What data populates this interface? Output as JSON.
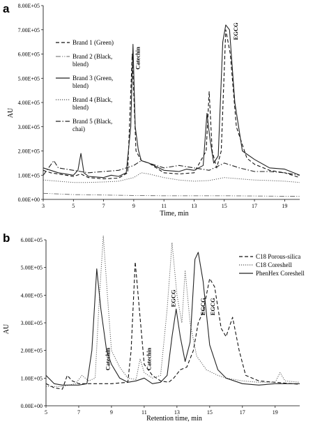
{
  "chart_data": [
    {
      "type": "line",
      "panel_label": "a",
      "xlabel": "Time, min",
      "ylabel": "AU",
      "xlim": [
        3,
        20
      ],
      "ylim": [
        0,
        800000
      ],
      "x_ticks": [
        "3",
        "5",
        "7",
        "9",
        "11",
        "13",
        "15",
        "17",
        "19"
      ],
      "y_ticks": [
        "0.00E+00",
        "1.00E+05",
        "2.00E+05",
        "3.00E+05",
        "4.00E+05",
        "5.00E+05",
        "6.00E+05",
        "7.00E+05",
        "8.00E+05"
      ],
      "legend_position": "left",
      "annotations": [
        {
          "text": "Catechin",
          "x": 9.4,
          "y": 630000
        },
        {
          "text": "EGCG",
          "x": 15.9,
          "y": 730000
        }
      ],
      "series": [
        {
          "name": "Brand 1 (Green)",
          "style": "dashed",
          "points": [
            [
              3,
              120000
            ],
            [
              3.5,
              110000
            ],
            [
              4,
              105000
            ],
            [
              5,
              95000
            ],
            [
              5.5,
              105000
            ],
            [
              6,
              90000
            ],
            [
              7,
              85000
            ],
            [
              8,
              88000
            ],
            [
              8.6,
              110000
            ],
            [
              8.9,
              600000
            ],
            [
              9.15,
              200000
            ],
            [
              9.5,
              160000
            ],
            [
              10,
              150000
            ],
            [
              11,
              110000
            ],
            [
              12,
              105000
            ],
            [
              13,
              110000
            ],
            [
              13.8,
              200000
            ],
            [
              14,
              445000
            ],
            [
              14.2,
              200000
            ],
            [
              14.5,
              130000
            ],
            [
              14.8,
              200000
            ],
            [
              15.1,
              700000
            ],
            [
              15.4,
              600000
            ],
            [
              15.8,
              300000
            ],
            [
              16.5,
              170000
            ],
            [
              17,
              145000
            ],
            [
              18,
              120000
            ],
            [
              19,
              110000
            ],
            [
              20,
              90000
            ]
          ]
        },
        {
          "name": "Brand 2 (Black, blend)",
          "style": "dashdotdot",
          "points": [
            [
              3,
              25000
            ],
            [
              5,
              20000
            ],
            [
              7,
              18000
            ],
            [
              9,
              16000
            ],
            [
              11,
              15000
            ],
            [
              13,
              15000
            ],
            [
              15,
              15000
            ],
            [
              17,
              14000
            ],
            [
              19,
              13000
            ],
            [
              20,
              13000
            ]
          ]
        },
        {
          "name": "Brand 3 (Green, blend)",
          "style": "solid",
          "points": [
            [
              3,
              130000
            ],
            [
              3.5,
              120000
            ],
            [
              4,
              110000
            ],
            [
              5,
              100000
            ],
            [
              5.3,
              120000
            ],
            [
              5.5,
              190000
            ],
            [
              5.7,
              110000
            ],
            [
              6,
              95000
            ],
            [
              7,
              90000
            ],
            [
              7.5,
              100000
            ],
            [
              8,
              95000
            ],
            [
              8.5,
              110000
            ],
            [
              8.8,
              300000
            ],
            [
              8.95,
              640000
            ],
            [
              9.1,
              300000
            ],
            [
              9.3,
              205000
            ],
            [
              9.5,
              160000
            ],
            [
              10,
              150000
            ],
            [
              11,
              120000
            ],
            [
              12,
              115000
            ],
            [
              12.5,
              125000
            ],
            [
              13,
              120000
            ],
            [
              13.6,
              140000
            ],
            [
              13.85,
              355000
            ],
            [
              14.05,
              250000
            ],
            [
              14.3,
              150000
            ],
            [
              14.6,
              180000
            ],
            [
              14.9,
              650000
            ],
            [
              15.1,
              720000
            ],
            [
              15.35,
              700000
            ],
            [
              15.7,
              400000
            ],
            [
              16.2,
              200000
            ],
            [
              17,
              165000
            ],
            [
              18,
              130000
            ],
            [
              19,
              125000
            ],
            [
              20,
              100000
            ]
          ]
        },
        {
          "name": "Brand 4 (Black, blend)",
          "style": "dotted",
          "points": [
            [
              3,
              80000
            ],
            [
              4,
              75000
            ],
            [
              5,
              70000
            ],
            [
              6,
              70000
            ],
            [
              7,
              72000
            ],
            [
              8,
              75000
            ],
            [
              9,
              90000
            ],
            [
              9.5,
              110000
            ],
            [
              10,
              105000
            ],
            [
              11,
              90000
            ],
            [
              12,
              80000
            ],
            [
              13,
              75000
            ],
            [
              14,
              78000
            ],
            [
              15,
              90000
            ],
            [
              16,
              85000
            ],
            [
              17,
              80000
            ],
            [
              18,
              78000
            ],
            [
              19,
              75000
            ],
            [
              20,
              70000
            ]
          ]
        },
        {
          "name": "Brand 5 (Black, chai)",
          "style": "dashdot",
          "points": [
            [
              3,
              100000
            ],
            [
              3.7,
              160000
            ],
            [
              4,
              130000
            ],
            [
              5,
              120000
            ],
            [
              6,
              110000
            ],
            [
              7,
              115000
            ],
            [
              8,
              120000
            ],
            [
              9,
              140000
            ],
            [
              9.5,
              160000
            ],
            [
              10,
              150000
            ],
            [
              11,
              130000
            ],
            [
              12,
              140000
            ],
            [
              13,
              130000
            ],
            [
              14,
              120000
            ],
            [
              15,
              150000
            ],
            [
              16,
              130000
            ],
            [
              17,
              115000
            ],
            [
              18,
              115000
            ],
            [
              19,
              110000
            ],
            [
              20,
              100000
            ]
          ]
        }
      ]
    },
    {
      "type": "line",
      "panel_label": "b",
      "xlabel": "Retention time, min",
      "ylabel": "AU",
      "xlim": [
        5,
        20.5
      ],
      "ylim": [
        0,
        600000
      ],
      "x_ticks": [
        "5",
        "7",
        "9",
        "11",
        "13",
        "15",
        "17",
        "19"
      ],
      "y_ticks": [
        "0.00E+00",
        "1.00E+05",
        "2.00E+05",
        "3.00E+05",
        "4.00E+05",
        "5.00E+05",
        "6.00E+05"
      ],
      "legend_position": "top-right",
      "annotations": [
        {
          "text": "Catechin",
          "x": 8.9,
          "y": 210000
        },
        {
          "text": "Catechin",
          "x": 11.4,
          "y": 210000
        },
        {
          "text": "EGCG",
          "x": 12.9,
          "y": 420000
        },
        {
          "text": "EGCG",
          "x": 14.7,
          "y": 390000
        },
        {
          "text": "EGCG",
          "x": 15.3,
          "y": 390000
        }
      ],
      "series": [
        {
          "name": "C18 Porous-silica",
          "style": "dashed",
          "points": [
            [
              5,
              80000
            ],
            [
              5.5,
              65000
            ],
            [
              6,
              60000
            ],
            [
              6.3,
              110000
            ],
            [
              6.6,
              90000
            ],
            [
              7,
              80000
            ],
            [
              8,
              80000
            ],
            [
              9,
              80000
            ],
            [
              10,
              85000
            ],
            [
              10.2,
              200000
            ],
            [
              10.45,
              520000
            ],
            [
              10.7,
              350000
            ],
            [
              11,
              150000
            ],
            [
              11.5,
              110000
            ],
            [
              12,
              90000
            ],
            [
              12.5,
              85000
            ],
            [
              12.8,
              100000
            ],
            [
              13.2,
              130000
            ],
            [
              13.6,
              140000
            ],
            [
              14,
              200000
            ],
            [
              14.3,
              300000
            ],
            [
              14.6,
              340000
            ],
            [
              15,
              460000
            ],
            [
              15.3,
              430000
            ],
            [
              15.7,
              280000
            ],
            [
              16,
              250000
            ],
            [
              16.4,
              320000
            ],
            [
              16.8,
              200000
            ],
            [
              17.2,
              110000
            ],
            [
              18,
              90000
            ],
            [
              19,
              85000
            ],
            [
              20,
              80000
            ],
            [
              20.5,
              78000
            ]
          ]
        },
        {
          "name": "C18 Coreshell",
          "style": "dotted",
          "points": [
            [
              5,
              70000
            ],
            [
              6,
              70000
            ],
            [
              6.8,
              80000
            ],
            [
              7.2,
              110000
            ],
            [
              7.6,
              90000
            ],
            [
              8,
              100000
            ],
            [
              8.25,
              380000
            ],
            [
              8.5,
              615000
            ],
            [
              8.75,
              400000
            ],
            [
              9,
              200000
            ],
            [
              9.5,
              140000
            ],
            [
              10,
              100000
            ],
            [
              10.5,
              95000
            ],
            [
              10.75,
              170000
            ],
            [
              11,
              120000
            ],
            [
              11.5,
              100000
            ],
            [
              12,
              110000
            ],
            [
              12.4,
              350000
            ],
            [
              12.7,
              590000
            ],
            [
              13,
              400000
            ],
            [
              13.3,
              300000
            ],
            [
              13.5,
              490000
            ],
            [
              13.8,
              300000
            ],
            [
              14.2,
              180000
            ],
            [
              14.8,
              130000
            ],
            [
              15.5,
              110000
            ],
            [
              16,
              100000
            ],
            [
              17,
              90000
            ],
            [
              18,
              85000
            ],
            [
              19,
              85000
            ],
            [
              19.3,
              120000
            ],
            [
              19.6,
              90000
            ],
            [
              20.5,
              85000
            ]
          ]
        },
        {
          "name": "PhenHex Coreshell",
          "style": "solid",
          "points": [
            [
              5,
              110000
            ],
            [
              5.5,
              80000
            ],
            [
              6,
              75000
            ],
            [
              7,
              75000
            ],
            [
              7.5,
              80000
            ],
            [
              7.8,
              200000
            ],
            [
              8.1,
              495000
            ],
            [
              8.35,
              350000
            ],
            [
              8.7,
              200000
            ],
            [
              9,
              150000
            ],
            [
              9.5,
              100000
            ],
            [
              10,
              85000
            ],
            [
              10.5,
              90000
            ],
            [
              11,
              100000
            ],
            [
              11.5,
              80000
            ],
            [
              12,
              85000
            ],
            [
              12.4,
              110000
            ],
            [
              12.7,
              250000
            ],
            [
              12.95,
              350000
            ],
            [
              13.2,
              250000
            ],
            [
              13.5,
              160000
            ],
            [
              13.8,
              230000
            ],
            [
              14.1,
              530000
            ],
            [
              14.3,
              555000
            ],
            [
              14.6,
              450000
            ],
            [
              15,
              220000
            ],
            [
              15.5,
              130000
            ],
            [
              16,
              100000
            ],
            [
              17,
              80000
            ],
            [
              18,
              75000
            ],
            [
              19,
              80000
            ],
            [
              20,
              80000
            ],
            [
              20.5,
              80000
            ]
          ]
        }
      ]
    }
  ]
}
